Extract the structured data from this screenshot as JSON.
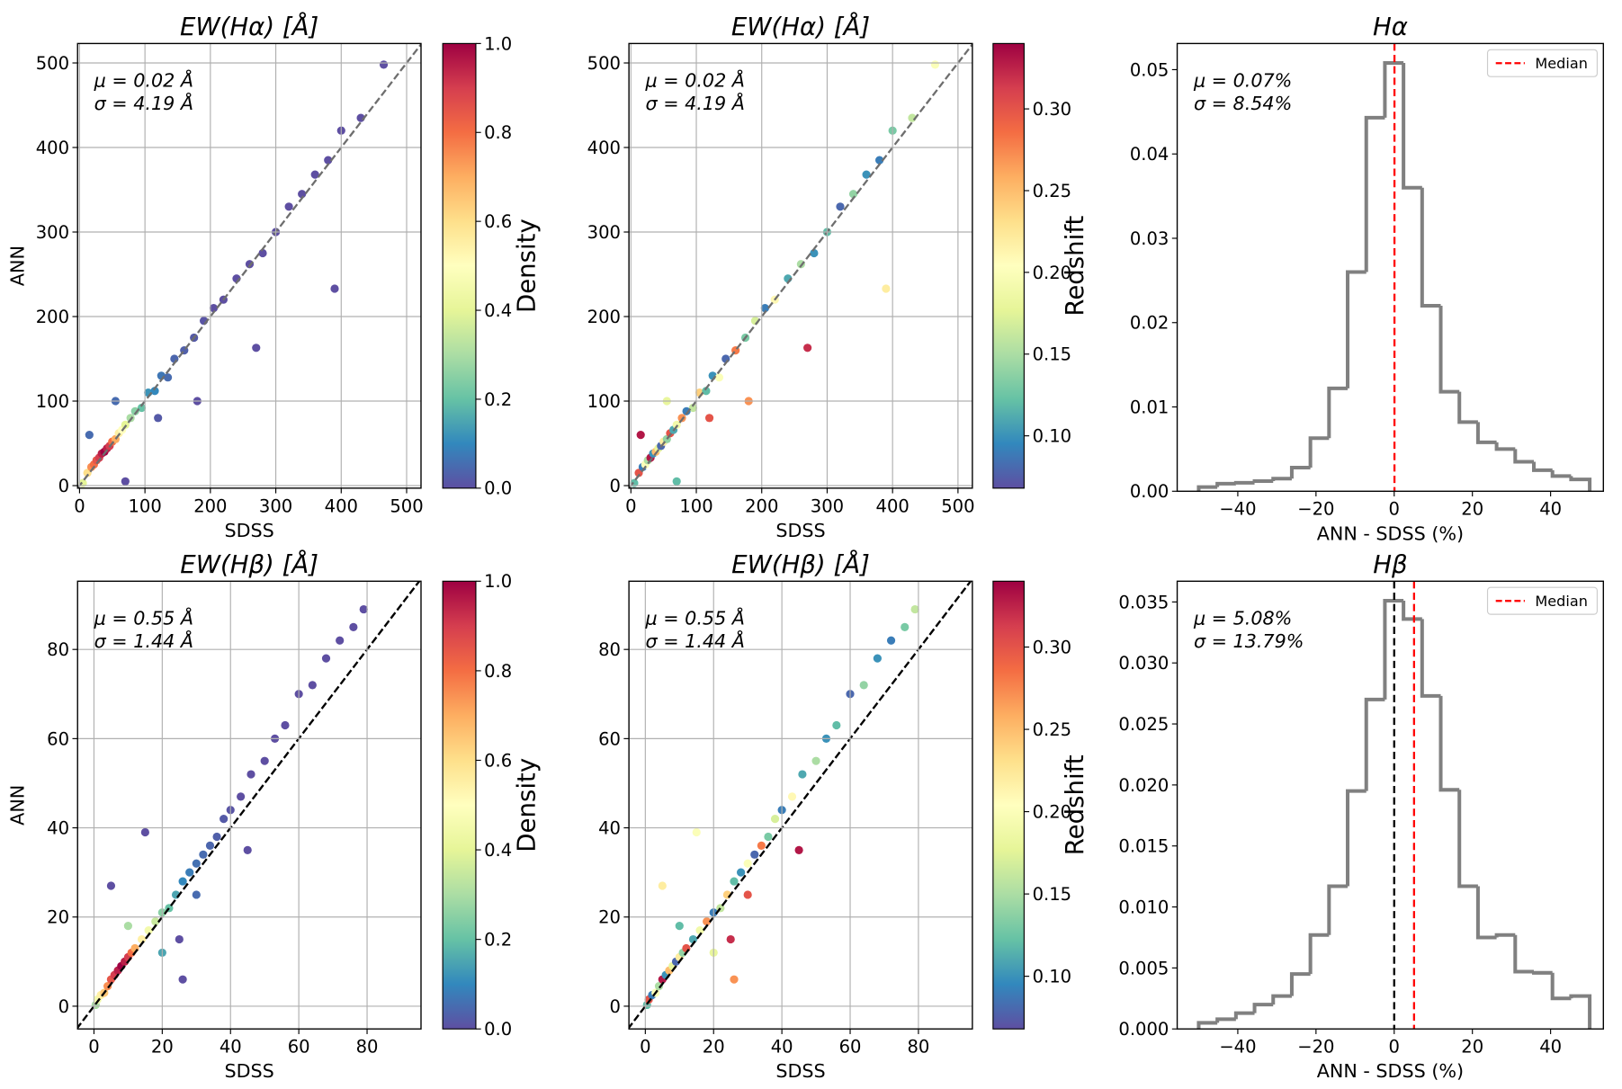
{
  "chart_data": [
    {
      "type": "scatter",
      "title": "EW(Hα) [Å]",
      "xlabel": "SDSS",
      "ylabel": "ANN",
      "annotations": [
        "μ = 0.02 Å",
        "σ = 4.19 Å"
      ],
      "x": [
        5,
        12,
        18,
        22,
        26,
        30,
        34,
        38,
        42,
        46,
        50,
        55,
        60,
        65,
        70,
        78,
        85,
        95,
        105,
        115,
        125,
        135,
        145,
        160,
        175,
        190,
        205,
        220,
        240,
        260,
        280,
        300,
        320,
        340,
        360,
        380,
        400,
        430,
        465,
        390,
        270,
        180,
        15,
        70,
        55,
        120
      ],
      "y": [
        3,
        15,
        22,
        25,
        30,
        33,
        38,
        40,
        44,
        47,
        52,
        55,
        62,
        66,
        72,
        80,
        88,
        92,
        110,
        112,
        130,
        128,
        150,
        160,
        175,
        195,
        210,
        220,
        245,
        262,
        275,
        300,
        330,
        345,
        368,
        385,
        420,
        435,
        498,
        233,
        163,
        100,
        60,
        5,
        100,
        80
      ],
      "c": [
        0.4,
        0.6,
        0.75,
        0.8,
        0.85,
        0.9,
        0.95,
        1.0,
        0.95,
        0.9,
        0.8,
        0.7,
        0.55,
        0.5,
        0.4,
        0.3,
        0.25,
        0.2,
        0.12,
        0.1,
        0.07,
        0.05,
        0.04,
        0.03,
        0.02,
        0.01,
        0,
        0,
        0,
        0,
        0,
        0,
        0,
        0,
        0,
        0,
        0,
        0,
        0,
        0,
        0,
        0,
        0.05,
        0,
        0.05,
        0.02
      ],
      "xlim": [
        -3,
        522
      ],
      "ylim": [
        -3,
        523
      ],
      "xticks": [
        0,
        100,
        200,
        300,
        400,
        500
      ],
      "yticks": [
        0,
        100,
        200,
        300,
        400,
        500
      ],
      "grid": true,
      "diagonal_colors": [
        "#6e6e6e"
      ],
      "colorbar": {
        "label": "Density",
        "lim": [
          0,
          1
        ],
        "ticks": [
          {
            "value": 0,
            "label": "0.0"
          },
          0.2,
          0.4,
          0.6,
          0.8,
          {
            "value": 1,
            "label": "1.0"
          }
        ]
      }
    },
    {
      "type": "scatter",
      "title": "EW(Hα) [Å]",
      "xlabel": "SDSS",
      "annotations": [
        "μ = 0.02 Å",
        "σ = 4.19 Å"
      ],
      "x": [
        5,
        12,
        18,
        22,
        26,
        30,
        34,
        38,
        42,
        46,
        50,
        55,
        60,
        65,
        70,
        78,
        85,
        95,
        105,
        115,
        125,
        135,
        145,
        160,
        175,
        190,
        205,
        220,
        240,
        260,
        280,
        300,
        320,
        340,
        360,
        380,
        400,
        430,
        465,
        390,
        270,
        180,
        15,
        70,
        55,
        120
      ],
      "y": [
        3,
        15,
        22,
        25,
        30,
        33,
        38,
        40,
        44,
        47,
        52,
        55,
        62,
        66,
        72,
        80,
        88,
        92,
        110,
        112,
        130,
        128,
        150,
        160,
        175,
        195,
        210,
        220,
        245,
        262,
        275,
        300,
        330,
        345,
        368,
        385,
        420,
        435,
        498,
        233,
        163,
        100,
        60,
        5,
        100,
        80
      ],
      "c": [
        0.12,
        0.3,
        0.09,
        0.2,
        0.15,
        0.33,
        0.1,
        0.25,
        0.18,
        0.08,
        0.22,
        0.14,
        0.3,
        0.11,
        0.19,
        0.27,
        0.09,
        0.16,
        0.24,
        0.12,
        0.1,
        0.2,
        0.08,
        0.28,
        0.13,
        0.17,
        0.09,
        0.21,
        0.11,
        0.15,
        0.1,
        0.12,
        0.08,
        0.14,
        0.1,
        0.09,
        0.13,
        0.16,
        0.2,
        0.22,
        0.32,
        0.27,
        0.33,
        0.12,
        0.18,
        0.3
      ],
      "xlim": [
        -3,
        522
      ],
      "ylim": [
        -3,
        523
      ],
      "xticks": [
        0,
        100,
        200,
        300,
        400,
        500
      ],
      "yticks": [
        0,
        100,
        200,
        300,
        400,
        500
      ],
      "grid": true,
      "diagonal_colors": [
        "#6e6e6e"
      ],
      "colorbar": {
        "label": "Redshift",
        "lim": [
          0.068,
          0.34
        ],
        "ticks": [
          {
            "value": 0.1,
            "label": "0.10"
          },
          0.15,
          {
            "value": 0.2,
            "label": "0.20"
          },
          0.25,
          {
            "value": 0.3,
            "label": "0.30"
          }
        ]
      }
    },
    {
      "type": "histogram",
      "title": "Hα",
      "xlabel": "ANN - SDSS (%)",
      "annotations": [
        "μ = 0.07%",
        "σ = 8.54%"
      ],
      "bins": [
        -50,
        -45.238,
        -40.476,
        -35.714,
        -30.952,
        -26.19,
        -21.429,
        -16.667,
        -11.905,
        -7.143,
        -2.381,
        2.381,
        7.143,
        11.905,
        16.667,
        21.429,
        26.19,
        30.952,
        35.714,
        40.476,
        45.238,
        50
      ],
      "counts": [
        0.0005,
        0.0009,
        0.001,
        0.0012,
        0.0015,
        0.0028,
        0.0063,
        0.0122,
        0.026,
        0.0443,
        0.0508,
        0.036,
        0.022,
        0.0118,
        0.0082,
        0.0058,
        0.005,
        0.0035,
        0.0025,
        0.0018,
        0.0014
      ],
      "color": "#808080",
      "median": 0.07,
      "median_color": "#ff0000",
      "legend_label": "Median",
      "legend": "upper right",
      "xlim": [
        -55.5,
        53.5
      ],
      "ylim": [
        0,
        0.0531
      ],
      "xticks": [
        {
          "value": -40,
          "label": "−40"
        },
        {
          "value": -20,
          "label": "−20"
        },
        0,
        20,
        40
      ],
      "yticks": [
        {
          "value": 0,
          "label": "0.00"
        },
        0.01,
        0.02,
        0.03,
        0.04,
        0.05
      ]
    },
    {
      "type": "scatter",
      "title": "EW(Hβ) [Å]",
      "xlabel": "SDSS",
      "ylabel": "ANN",
      "annotations": [
        "μ = 0.55 Å",
        "σ = 1.44 Å"
      ],
      "x": [
        0.5,
        1,
        2,
        3,
        4,
        5,
        6,
        7,
        8,
        9,
        10,
        11,
        12,
        14,
        16,
        18,
        20,
        22,
        24,
        26,
        28,
        30,
        32,
        34,
        36,
        38,
        40,
        43,
        46,
        50,
        53,
        56,
        60,
        64,
        68,
        72,
        76,
        79,
        15,
        5,
        25,
        26,
        45,
        10,
        20,
        30
      ],
      "y": [
        0.3,
        1.5,
        2.5,
        3,
        4.5,
        6,
        7,
        8,
        9,
        10,
        11,
        12,
        13,
        15,
        17,
        19,
        21,
        22,
        25,
        28,
        30,
        32,
        34,
        36,
        38,
        42,
        44,
        47,
        52,
        55,
        60,
        63,
        70,
        72,
        78,
        82,
        85,
        89,
        39,
        27,
        15,
        6,
        35,
        18,
        12,
        25
      ],
      "c": [
        0.3,
        0.45,
        0.55,
        0.65,
        0.75,
        0.85,
        0.9,
        0.95,
        1.0,
        0.95,
        0.9,
        0.8,
        0.7,
        0.55,
        0.45,
        0.35,
        0.25,
        0.2,
        0.15,
        0.1,
        0.08,
        0.06,
        0.05,
        0.04,
        0.03,
        0.02,
        0.01,
        0,
        0,
        0,
        0,
        0,
        0,
        0,
        0,
        0,
        0,
        0,
        0,
        0,
        0,
        0,
        0,
        0.3,
        0.15,
        0.05
      ],
      "xlim": [
        -4.8,
        95.8
      ],
      "ylim": [
        -5.1,
        95.3
      ],
      "xticks": [
        0,
        20,
        40,
        60,
        80
      ],
      "yticks": [
        0,
        20,
        40,
        60,
        80
      ],
      "grid": true,
      "diagonal_colors": [
        "#808080",
        "#000000"
      ],
      "colorbar": {
        "label": "Density",
        "lim": [
          0,
          1
        ],
        "ticks": [
          {
            "value": 0,
            "label": "0.0"
          },
          0.2,
          0.4,
          0.6,
          0.8,
          {
            "value": 1,
            "label": "1.0"
          }
        ]
      }
    },
    {
      "type": "scatter",
      "title": "EW(Hβ) [Å]",
      "xlabel": "SDSS",
      "annotations": [
        "μ = 0.55 Å",
        "σ = 1.44 Å"
      ],
      "x": [
        0.5,
        1,
        2,
        3,
        4,
        5,
        6,
        7,
        8,
        9,
        10,
        11,
        12,
        14,
        16,
        18,
        20,
        22,
        24,
        26,
        28,
        30,
        32,
        34,
        36,
        38,
        40,
        43,
        46,
        50,
        53,
        56,
        60,
        64,
        68,
        72,
        76,
        79,
        15,
        5,
        25,
        26,
        45,
        10,
        20,
        30
      ],
      "y": [
        0.3,
        1.5,
        2.5,
        3,
        4.5,
        6,
        7,
        8,
        9,
        10,
        11,
        12,
        13,
        15,
        17,
        19,
        21,
        22,
        25,
        28,
        30,
        32,
        34,
        36,
        38,
        42,
        44,
        47,
        52,
        55,
        60,
        63,
        70,
        72,
        78,
        82,
        85,
        89,
        39,
        27,
        15,
        6,
        35,
        18,
        12,
        25
      ],
      "c": [
        0.12,
        0.3,
        0.09,
        0.2,
        0.15,
        0.33,
        0.1,
        0.25,
        0.18,
        0.08,
        0.22,
        0.14,
        0.3,
        0.11,
        0.19,
        0.27,
        0.09,
        0.16,
        0.24,
        0.12,
        0.1,
        0.2,
        0.08,
        0.28,
        0.13,
        0.17,
        0.09,
        0.21,
        0.11,
        0.15,
        0.1,
        0.12,
        0.08,
        0.14,
        0.1,
        0.09,
        0.13,
        0.16,
        0.2,
        0.22,
        0.32,
        0.27,
        0.33,
        0.12,
        0.18,
        0.3
      ],
      "xlim": [
        -4.8,
        95.8
      ],
      "ylim": [
        -5.1,
        95.3
      ],
      "xticks": [
        0,
        20,
        40,
        60,
        80
      ],
      "yticks": [
        0,
        20,
        40,
        60,
        80
      ],
      "grid": true,
      "diagonal_colors": [
        "#808080",
        "#000000"
      ],
      "colorbar": {
        "label": "Redshift",
        "lim": [
          0.068,
          0.34
        ],
        "ticks": [
          {
            "value": 0.1,
            "label": "0.10"
          },
          0.15,
          {
            "value": 0.2,
            "label": "0.20"
          },
          0.25,
          {
            "value": 0.3,
            "label": "0.30"
          }
        ]
      }
    },
    {
      "type": "histogram",
      "title": "Hβ",
      "xlabel": "ANN - SDSS (%)",
      "annotations": [
        "μ = 5.08%",
        "σ = 13.79%"
      ],
      "bins": [
        -50,
        -45.238,
        -40.476,
        -35.714,
        -30.952,
        -26.19,
        -21.429,
        -16.667,
        -11.905,
        -7.143,
        -2.381,
        2.381,
        7.143,
        11.905,
        16.667,
        21.429,
        26.19,
        30.952,
        35.714,
        40.476,
        45.238,
        50
      ],
      "counts": [
        0.0005,
        0.0008,
        0.0013,
        0.002,
        0.0027,
        0.0045,
        0.0077,
        0.0117,
        0.0195,
        0.027,
        0.0351,
        0.0336,
        0.0273,
        0.0196,
        0.0117,
        0.0075,
        0.0077,
        0.0047,
        0.0046,
        0.0025,
        0.0027
      ],
      "color": "#808080",
      "median": 5.08,
      "median_color": "#ff0000",
      "reference_line": 0,
      "legend_label": "Median",
      "legend": "upper right",
      "xlim": [
        -55.5,
        53.5
      ],
      "ylim": [
        0,
        0.0367
      ],
      "xticks": [
        {
          "value": -40,
          "label": "−40"
        },
        {
          "value": -20,
          "label": "−20"
        },
        0,
        20,
        40
      ],
      "yticks": [
        {
          "value": 0,
          "label": "0.000"
        },
        0.005,
        {
          "value": 0.01,
          "label": "0.010"
        },
        0.015,
        {
          "value": 0.02,
          "label": "0.020"
        },
        0.025,
        {
          "value": 0.03,
          "label": "0.030"
        },
        0.035
      ]
    }
  ]
}
